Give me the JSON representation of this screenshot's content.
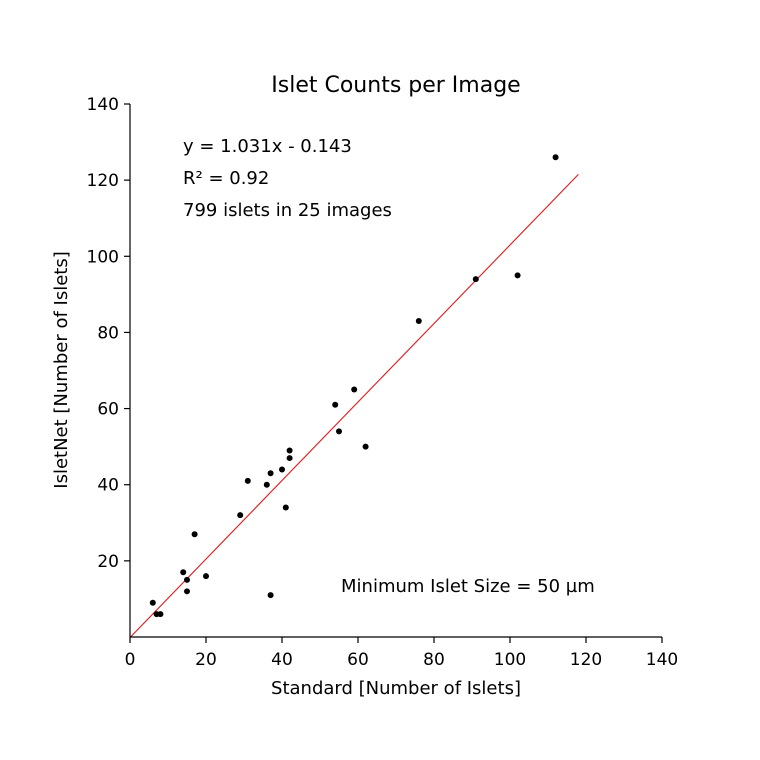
{
  "chart_data": {
    "type": "scatter",
    "title": "Islet Counts per Image",
    "xlabel": "Standard [Number of Islets]",
    "ylabel": "IsletNet [Number of Islets]",
    "xlim": [
      0,
      140
    ],
    "ylim": [
      0,
      140
    ],
    "xticks": [
      0,
      20,
      40,
      60,
      80,
      100,
      120,
      140
    ],
    "yticks": [
      20,
      40,
      60,
      80,
      100,
      120,
      140
    ],
    "grid": false,
    "point_color": "#000000",
    "fit_color": "#e31a1c",
    "points": [
      {
        "x": 6,
        "y": 9
      },
      {
        "x": 7,
        "y": 6
      },
      {
        "x": 8,
        "y": 6
      },
      {
        "x": 14,
        "y": 17
      },
      {
        "x": 15,
        "y": 15
      },
      {
        "x": 15,
        "y": 12
      },
      {
        "x": 17,
        "y": 27
      },
      {
        "x": 20,
        "y": 16
      },
      {
        "x": 29,
        "y": 32
      },
      {
        "x": 31,
        "y": 41
      },
      {
        "x": 36,
        "y": 40
      },
      {
        "x": 37,
        "y": 43
      },
      {
        "x": 37,
        "y": 11
      },
      {
        "x": 40,
        "y": 44
      },
      {
        "x": 41,
        "y": 34
      },
      {
        "x": 42,
        "y": 49
      },
      {
        "x": 42,
        "y": 47
      },
      {
        "x": 54,
        "y": 61
      },
      {
        "x": 55,
        "y": 54
      },
      {
        "x": 59,
        "y": 65
      },
      {
        "x": 62,
        "y": 50
      },
      {
        "x": 76,
        "y": 83
      },
      {
        "x": 91,
        "y": 94
      },
      {
        "x": 102,
        "y": 95
      },
      {
        "x": 112,
        "y": 126
      }
    ],
    "fit": {
      "slope": 1.031,
      "intercept": -0.143,
      "x_range": [
        0,
        118
      ]
    },
    "annotations": {
      "equation": "y = 1.031x  -  0.143",
      "r2": "R² = 0.92",
      "summary": "799 islets in 25 images",
      "min_size": "Minimum Islet Size = 50 µm"
    }
  }
}
